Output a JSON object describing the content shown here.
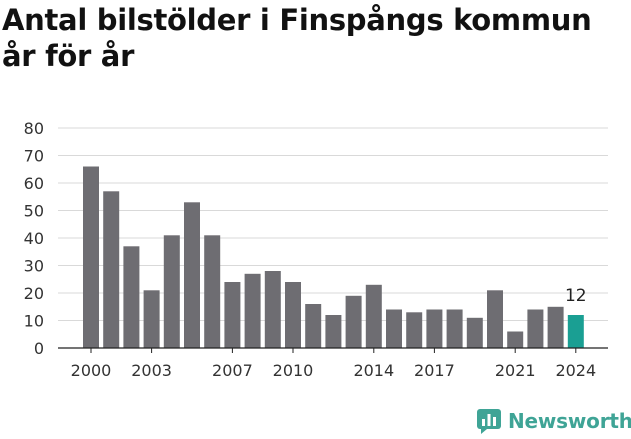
{
  "title": "Antal bilstölder i Finspångs kommun år för år",
  "brand": {
    "name": "Newsworthy",
    "logo_icon": "newsworthy-chart-logo-icon",
    "color": "#3fa496"
  },
  "chart_data": {
    "type": "bar",
    "title": "Antal bilstölder i Finspångs kommun år för år",
    "xlabel": "",
    "ylabel": "",
    "categories": [
      "2000",
      "2001",
      "2002",
      "2003",
      "2004",
      "2005",
      "2006",
      "2007",
      "2008",
      "2009",
      "2010",
      "2011",
      "2012",
      "2013",
      "2014",
      "2015",
      "2016",
      "2017",
      "2018",
      "2019",
      "2020",
      "2021",
      "2022",
      "2023",
      "2024"
    ],
    "values": [
      66,
      57,
      37,
      21,
      41,
      53,
      41,
      24,
      27,
      28,
      24,
      16,
      12,
      19,
      23,
      14,
      13,
      14,
      14,
      11,
      21,
      6,
      14,
      15,
      12
    ],
    "ylim": [
      0,
      80
    ],
    "yticks": [
      0,
      10,
      20,
      30,
      40,
      50,
      60,
      70,
      80
    ],
    "xtick_labels": [
      "2000",
      "2003",
      "2007",
      "2010",
      "2014",
      "2017",
      "2021",
      "2024"
    ],
    "highlight": {
      "category": "2024",
      "label": "12"
    },
    "colors": {
      "bar": "#6e6d72",
      "highlight": "#1a9f93",
      "grid": "#d9d9d9",
      "axis": "#222222"
    },
    "grid": true,
    "legend": "none"
  }
}
